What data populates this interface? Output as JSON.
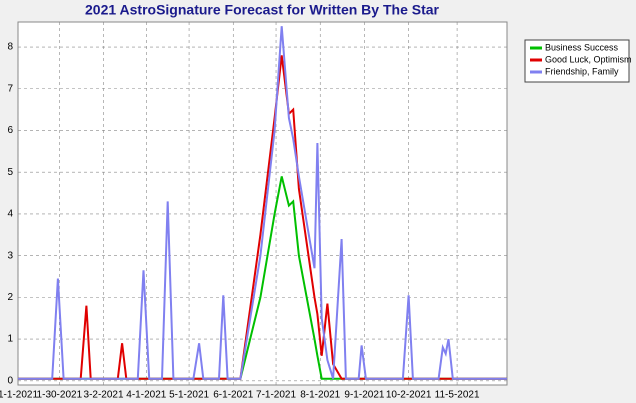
{
  "chart_data": {
    "type": "line",
    "title": "2021 AstroSignature Forecast for Written By The Star",
    "x": [
      "1-1-2021",
      "1-25-2021",
      "1-29-2021",
      "2-2-2021",
      "2-14-2021",
      "2-18-2021",
      "2-21-2021",
      "3-12-2021",
      "3-15-2021",
      "3-18-2021",
      "3-26-2021",
      "3-30-2021",
      "4-3-2021",
      "4-12-2021",
      "4-16-2021",
      "4-20-2021",
      "5-4-2021",
      "5-8-2021",
      "5-11-2021",
      "5-22-2021",
      "5-25-2021",
      "5-28-2021",
      "6-6-2021",
      "6-20-2021",
      "6-30-2021",
      "7-5-2021",
      "7-10-2021",
      "7-13-2021",
      "7-17-2021",
      "7-28-2021",
      "7-30-2021",
      "8-2-2021",
      "8-6-2021",
      "8-10-2021",
      "8-16-2021",
      "8-19-2021",
      "8-28-2021",
      "8-30-2021",
      "9-2-2021",
      "9-28-2021",
      "10-2-2021",
      "10-5-2021",
      "10-23-2021",
      "10-26-2021",
      "10-28-2021",
      "10-30-2021",
      "11-2-2021",
      "12-10-2021"
    ],
    "series": [
      {
        "name": "Business Success",
        "color": "#00c000",
        "values": [
          0.05,
          0.05,
          0.05,
          0.05,
          0.05,
          0.05,
          0.05,
          0.05,
          0.05,
          0.05,
          0.05,
          0.05,
          0.05,
          0.05,
          0.05,
          0.05,
          0.05,
          0.05,
          0.05,
          0.05,
          0.05,
          0.05,
          0.05,
          2.0,
          4.0,
          4.9,
          4.2,
          4.3,
          3.0,
          1.0,
          0.6,
          0.05,
          0.05,
          0.05,
          0.05,
          0.05,
          0.05,
          0.05,
          0.05,
          0.05,
          0.05,
          0.05,
          0.05,
          0.05,
          0.05,
          0.05,
          0.05,
          0.05
        ]
      },
      {
        "name": "Good Luck, Optimism",
        "color": "#e00000",
        "values": [
          0.05,
          0.05,
          0.05,
          0.05,
          0.05,
          1.8,
          0.05,
          0.05,
          0.9,
          0.05,
          0.05,
          0.05,
          0.05,
          0.05,
          0.05,
          0.05,
          0.05,
          0.05,
          0.05,
          0.05,
          0.05,
          0.05,
          0.05,
          3.5,
          6.3,
          7.8,
          6.4,
          6.5,
          4.6,
          2.0,
          1.6,
          0.6,
          1.85,
          0.4,
          0.05,
          0.05,
          0.05,
          0.05,
          0.05,
          0.05,
          0.05,
          0.05,
          0.05,
          0.05,
          0.05,
          0.05,
          0.05,
          0.05
        ]
      },
      {
        "name": "Friendship, Family",
        "color": "#8080f0",
        "values": [
          0.05,
          0.05,
          2.45,
          0.05,
          0.05,
          0.05,
          0.05,
          0.05,
          0.05,
          0.05,
          0.05,
          2.65,
          0.05,
          0.05,
          4.3,
          0.05,
          0.05,
          0.9,
          0.05,
          0.05,
          2.05,
          0.05,
          0.05,
          3.0,
          6.0,
          8.5,
          6.3,
          5.8,
          4.9,
          2.7,
          5.7,
          1.5,
          0.5,
          0.05,
          3.4,
          0.05,
          0.05,
          0.85,
          0.05,
          0.05,
          2.05,
          0.05,
          0.05,
          0.8,
          0.65,
          1.0,
          0.05,
          0.05
        ]
      }
    ],
    "xlim": [
      "1-1-2021",
      "12-10-2021"
    ],
    "xticks": [
      "1-1-2021",
      "1-30-2021",
      "3-2-2021",
      "4-1-2021",
      "5-1-2021",
      "6-1-2021",
      "7-1-2021",
      "8-1-2021",
      "9-1-2021",
      "10-2-2021",
      "11-5-2021"
    ],
    "ylim": [
      -0.1,
      8.6
    ],
    "yticks": [
      0,
      1,
      2,
      3,
      4,
      5,
      6,
      7,
      8
    ],
    "grid": true,
    "legend": "top-right"
  }
}
